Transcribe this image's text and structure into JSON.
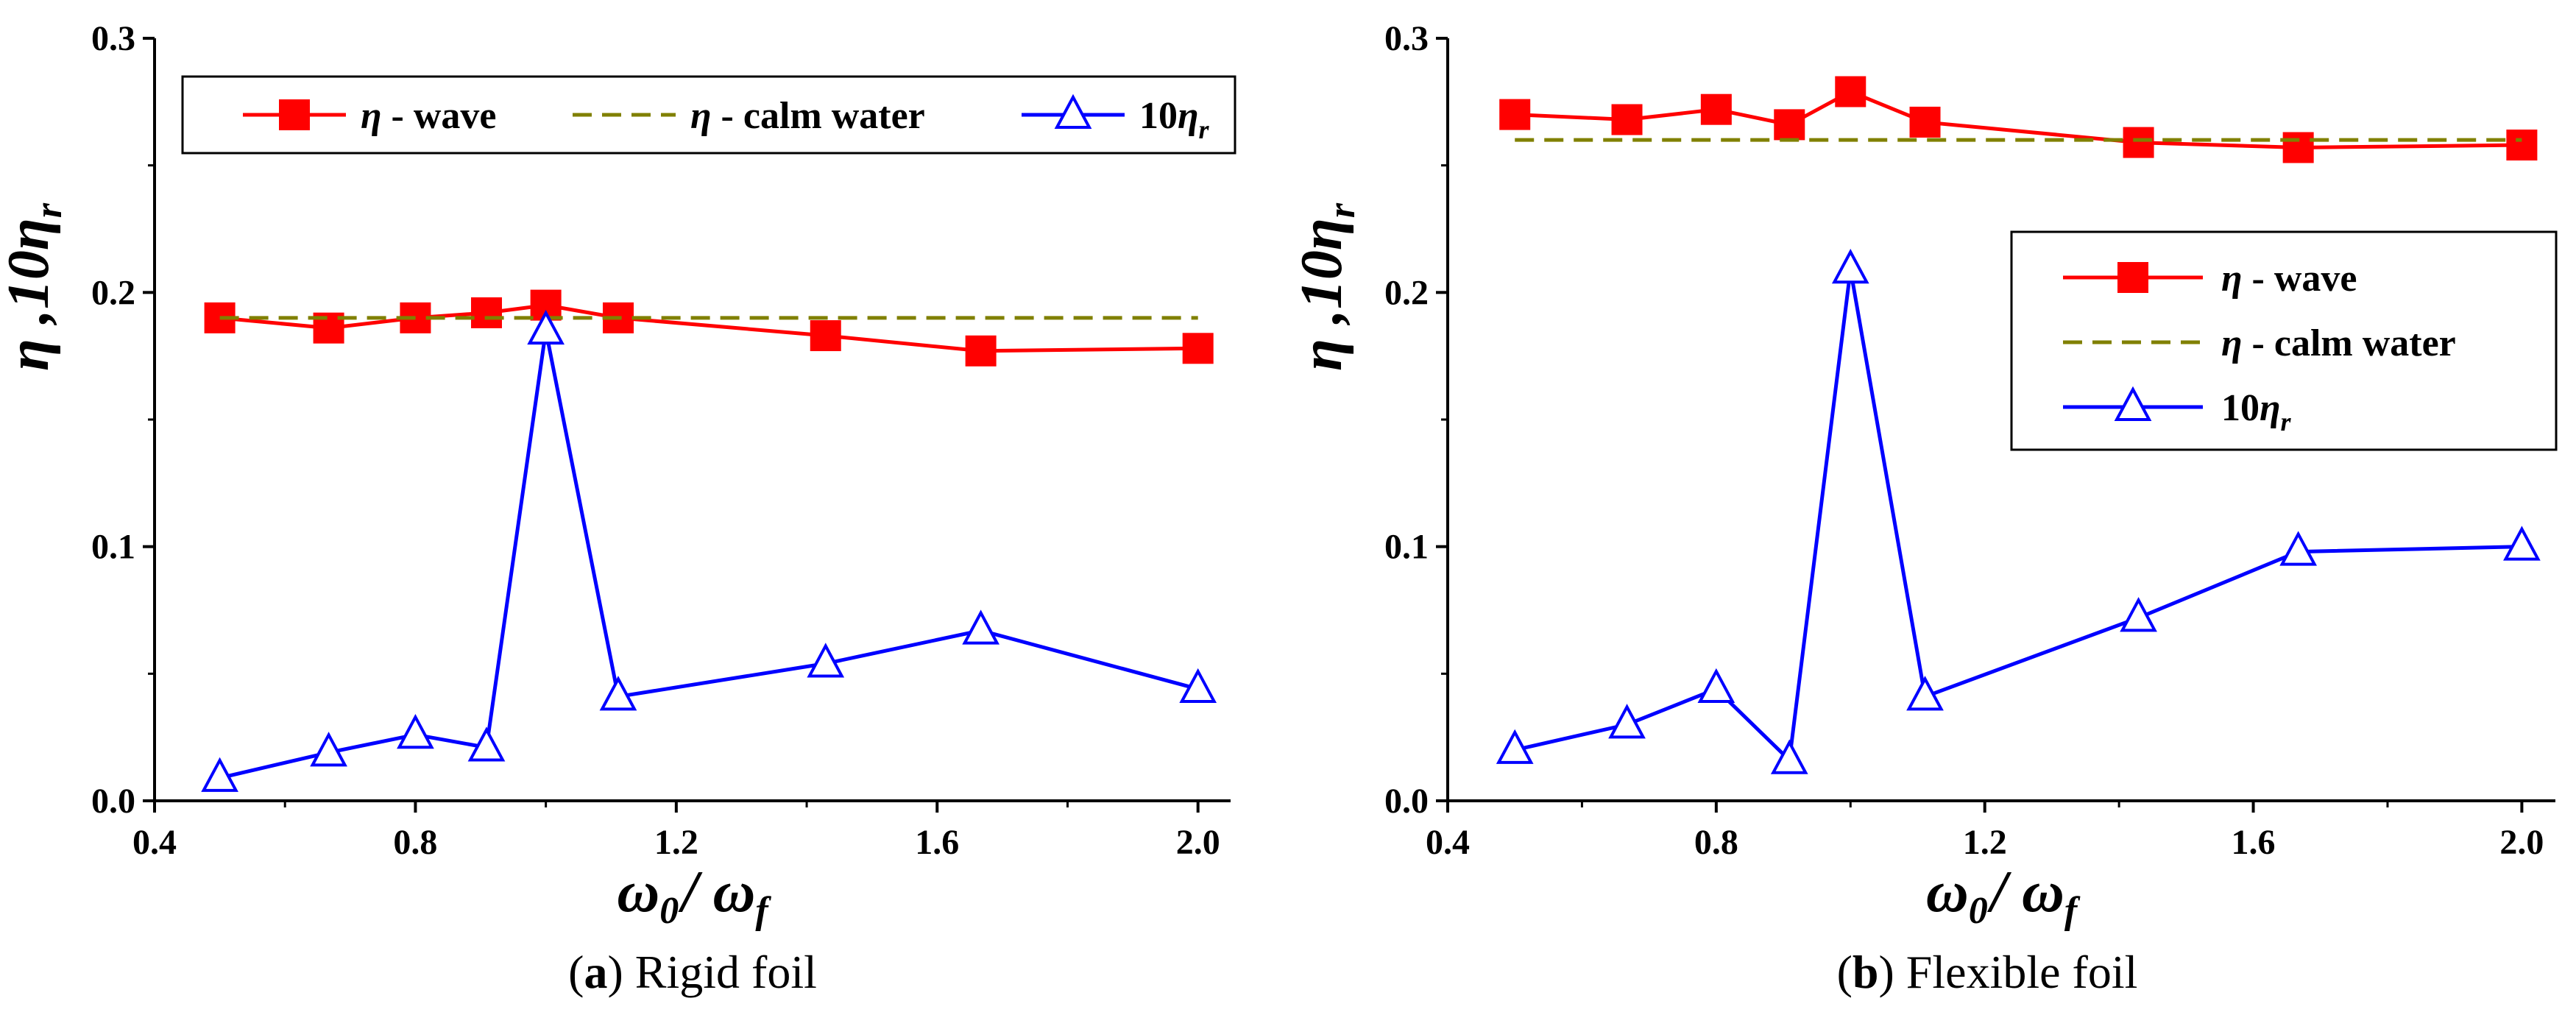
{
  "chart_data": [
    {
      "type": "line",
      "caption_letter": "a",
      "caption_text": "Rigid foil",
      "xlabel": "ω0 / ωf",
      "ylabel": "η ,10ηr",
      "xlim": [
        0.4,
        2.05
      ],
      "ylim": [
        0.0,
        0.3
      ],
      "xticks": [
        "0.4",
        "0.8",
        "1.2",
        "1.6",
        "2.0"
      ],
      "yticks": [
        "0.0",
        "0.1",
        "0.2",
        "0.3"
      ],
      "legend_position": "top",
      "series": [
        {
          "name": "η - wave",
          "legend_parts": [
            "η",
            " - wave"
          ],
          "color": "#ff0000",
          "marker": "square",
          "style": "solid",
          "x": [
            0.5,
            0.667,
            0.8,
            0.909,
            1.0,
            1.111,
            1.429,
            1.667,
            2.0
          ],
          "y": [
            0.19,
            0.186,
            0.19,
            0.192,
            0.195,
            0.19,
            0.183,
            0.177,
            0.178
          ]
        },
        {
          "name": "η - calm water",
          "legend_parts": [
            "η",
            " - calm water"
          ],
          "color": "#808000",
          "marker": "none",
          "style": "dashed",
          "x": [
            0.5,
            2.0
          ],
          "y": [
            0.19,
            0.19
          ]
        },
        {
          "name": "10ηr",
          "legend_parts": [
            "10",
            "η",
            "r"
          ],
          "color": "#0000ff",
          "marker": "triangle",
          "style": "solid",
          "x": [
            0.5,
            0.667,
            0.8,
            0.909,
            1.0,
            1.111,
            1.429,
            1.667,
            2.0
          ],
          "y": [
            0.009,
            0.019,
            0.026,
            0.021,
            0.185,
            0.041,
            0.054,
            0.067,
            0.044
          ]
        }
      ]
    },
    {
      "type": "line",
      "caption_letter": "b",
      "caption_text": "Flexible foil",
      "xlabel": "ω0 / ωf",
      "ylabel": "η ,10ηr",
      "xlim": [
        0.4,
        2.05
      ],
      "ylim": [
        0.0,
        0.3
      ],
      "xticks": [
        "0.4",
        "0.8",
        "1.2",
        "1.6",
        "2.0"
      ],
      "yticks": [
        "0.0",
        "0.1",
        "0.2",
        "0.3"
      ],
      "legend_position": "right",
      "series": [
        {
          "name": "η - wave",
          "legend_parts": [
            "η",
            " - wave"
          ],
          "color": "#ff0000",
          "marker": "square",
          "style": "solid",
          "x": [
            0.5,
            0.667,
            0.8,
            0.909,
            1.0,
            1.111,
            1.429,
            1.667,
            2.0
          ],
          "y": [
            0.27,
            0.268,
            0.272,
            0.266,
            0.279,
            0.267,
            0.259,
            0.257,
            0.258
          ]
        },
        {
          "name": "η - calm water",
          "legend_parts": [
            "η",
            " - calm water"
          ],
          "color": "#808000",
          "marker": "none",
          "style": "dashed",
          "x": [
            0.5,
            2.0
          ],
          "y": [
            0.26,
            0.26
          ]
        },
        {
          "name": "10ηr",
          "legend_parts": [
            "10",
            "η",
            "r"
          ],
          "color": "#0000ff",
          "marker": "triangle",
          "style": "solid",
          "x": [
            0.5,
            0.667,
            0.8,
            0.909,
            1.0,
            1.111,
            1.429,
            1.667,
            2.0
          ],
          "y": [
            0.02,
            0.03,
            0.044,
            0.016,
            0.209,
            0.041,
            0.072,
            0.098,
            0.1
          ]
        }
      ]
    }
  ]
}
